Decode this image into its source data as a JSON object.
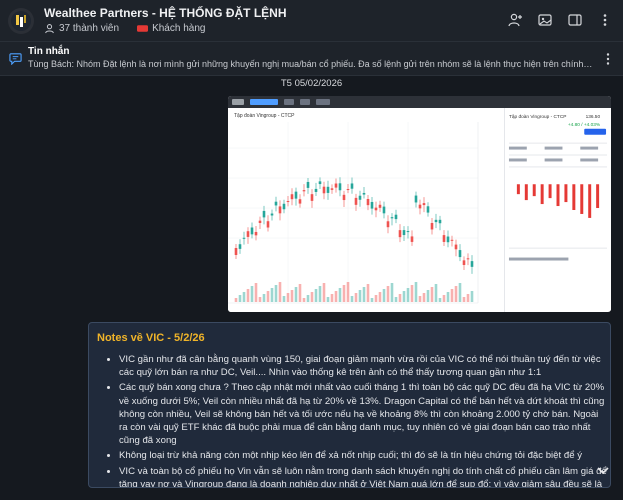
{
  "header": {
    "title": "Wealthee Partners - HỆ THỐNG ĐẶT LỆNH",
    "members": "37 thành viên",
    "guests": "Khách hàng"
  },
  "pinned": {
    "label": "Tin nhắn",
    "text": "Tùng Bách: Nhóm Đặt lệnh là nơi mình gửi những khuyến nghị mua/bán cổ phiếu. Đa số lệnh gửi trên nhóm sẽ là lệnh thực hiện trên chính tài khoản của mình. Ngo..."
  },
  "date_separator": "T5 05/02/2026",
  "screenshot": {
    "symbol": "VIC HSX",
    "stock_name": "Tập đoàn Vingroup - CTCP",
    "price": "136.50",
    "change": "+4.80 / +4.03%"
  },
  "note": {
    "heading": "Notes về VIC - 5/2/26",
    "bullets": [
      "VIC gần như đã cân bằng quanh vùng 150, giai đoạn giảm mạnh vừa rồi của VIC có thể nói thuần tuý đến từ việc các quỹ lớn bán ra như DC, Veil.... Nhìn vào thống kê trên ảnh có thể thấy tương quan gần như 1:1",
      "Các quỹ bán xong chưa ? Theo cập nhật mới nhất vào cuối tháng 1 thì toàn bộ các quỹ DC đều đã hạ VIC từ 20% về xuống dưới 5%; Veil còn nhiều nhất đã hạ từ 20% về 13%. Dragon Capital có thể bán hết và dứt khoát thì cũng không còn nhiều, Veil sẽ không bán hết và tối ước nếu hạ về khoảng 8% thì còn khoảng 2.000 tỷ chờ bán. Ngoài ra còn vài quỹ ETF khác đã buộc phải mua để cân bằng danh mục, tuy nhiên có vẻ giai đoạn bán cao trào nhất cũng đã xong",
      "Không loại trừ khả năng còn một nhịp kéo lên để xả nốt nhịp cuối; thì đó sẽ là tín hiệu chứng tỏi đặc biệt để ý",
      "VIC và toàn bộ cổ phiếu họ Vin vẫn sẽ luôn nằm trong danh sách khuyến nghị do tính chất cổ phiếu cần lâm giá để tăng vay nợ và Vingroup đang là doanh nghiệp duy nhất ở Việt Nam quá lớn để sụp đổ; vì vậy giảm sâu đều sẽ là cơ hội để mua vào. Chúng tôi sẽ cập nhật kỹ hơn, NĐT ưa mạo hiểm có thể bắt đầu mua từ phiên hôm nay"
    ]
  },
  "colors": {
    "accent_heading": "#f0b429",
    "up": "#26a69a",
    "down": "#ef5350"
  }
}
